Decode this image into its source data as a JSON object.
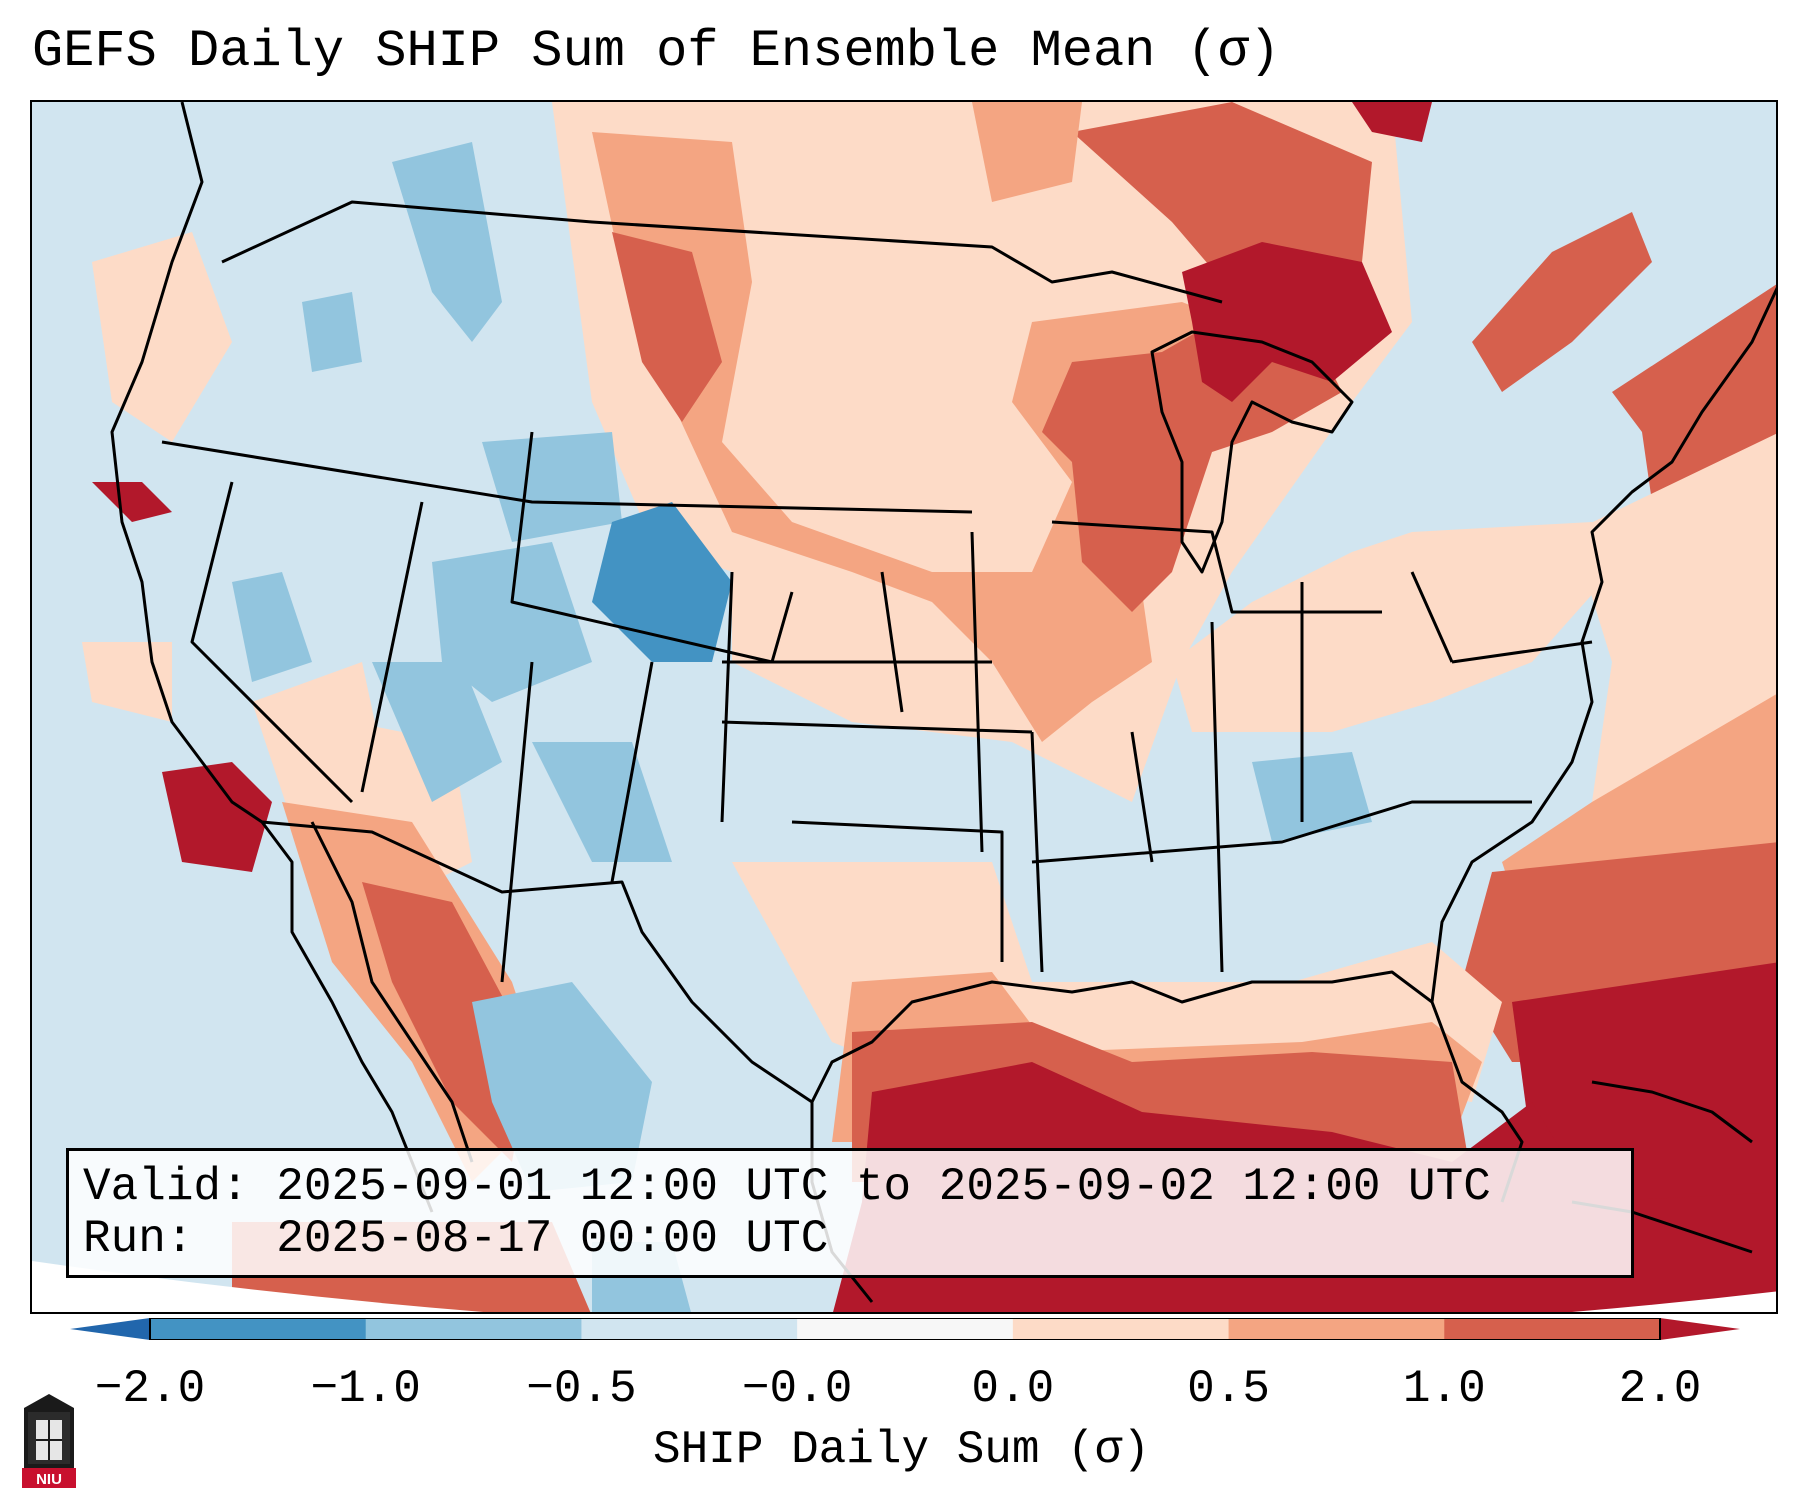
{
  "title": "GEFS Daily SHIP Sum of Ensemble Mean (σ)",
  "info": {
    "valid_label": "Valid:",
    "valid_value": "2025-09-01 12:00 UTC to 2025-09-02 12:00 UTC",
    "run_label": "Run:",
    "run_value": "2025-08-17 00:00 UTC"
  },
  "colorbar": {
    "label": "SHIP Daily Sum (σ)",
    "ticks": [
      "−2.0",
      "−1.0",
      "−0.5",
      "−0.0",
      "0.0",
      "0.5",
      "1.0",
      "2.0"
    ],
    "bins": [
      {
        "range": "-2.0 to -1.0",
        "color": "#4393c3"
      },
      {
        "range": "-1.0 to -0.5",
        "color": "#92c5de"
      },
      {
        "range": "-0.5 to -0.0",
        "color": "#d1e5f0"
      },
      {
        "range": "-0.0 to 0.0",
        "color": "#f7f7f7"
      },
      {
        "range": "0.0 to 0.5",
        "color": "#fddbc7"
      },
      {
        "range": "0.5 to 1.0",
        "color": "#f4a582"
      },
      {
        "range": "1.0 to 2.0",
        "color": "#d6604d"
      }
    ],
    "under_color": "#2166ac",
    "over_color": "#b2182b"
  },
  "colors": {
    "ocean_neutral": "#d1e5f0",
    "strong_blue": "#4393c3",
    "mid_blue": "#92c5de",
    "light_red": "#fddbc7",
    "mid_red": "#f4a582",
    "red": "#d6604d",
    "dark_red": "#b2182b",
    "niu_red": "#c8102e"
  },
  "logo": {
    "text": "NIU"
  }
}
